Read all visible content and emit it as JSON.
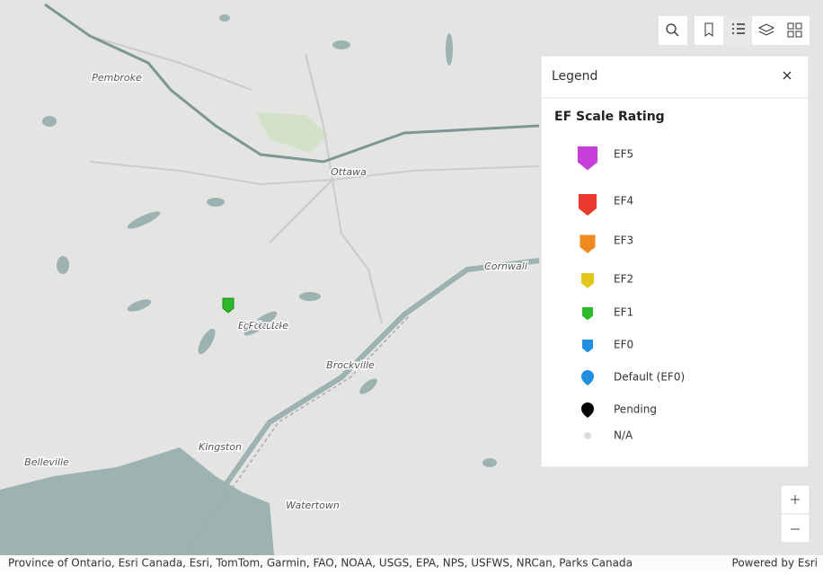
{
  "map_labels": [
    "Pembroke",
    "Ottawa",
    "Cornwall",
    "Big Rideau Lake",
    "Brockville",
    "Kingston",
    "Belleville",
    "Watertown"
  ],
  "legend": {
    "title": "Legend",
    "section": "EF Scale Rating",
    "items": [
      {
        "label": "EF5",
        "color": "#c63fd8"
      },
      {
        "label": "EF4",
        "color": "#e8392c"
      },
      {
        "label": "EF3",
        "color": "#f08a1e"
      },
      {
        "label": "EF2",
        "color": "#e3c61a"
      },
      {
        "label": "EF1",
        "color": "#2cb92c"
      },
      {
        "label": "EF0",
        "color": "#1e8fe1"
      },
      {
        "label": "Default (EF0)",
        "color": "#1e8fe1"
      },
      {
        "label": "Pending",
        "color": "#000000"
      },
      {
        "label": "N/A",
        "color": "#dddddd"
      }
    ]
  },
  "attribution": "Province of Ontario, Esri Canada, Esri, TomTom, Garmin, FAO, NOAA, USGS, EPA, NPS, USFWS, NRCan, Parks Canada",
  "powered_by": "Powered by Esri"
}
